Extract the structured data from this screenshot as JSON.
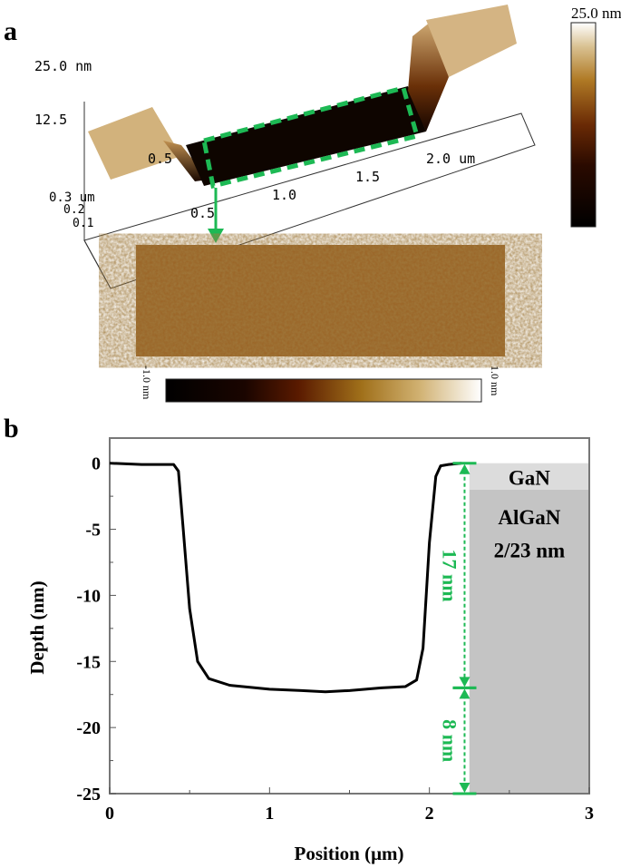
{
  "panel_a": {
    "label": "a",
    "z_axis_labels": [
      "25.0 nm",
      "12.5"
    ],
    "x_axis_labels": [
      "0.5",
      "1.0",
      "1.5",
      "2.0 um"
    ],
    "y_axis_labels": [
      "0.3 um",
      "0.2",
      "0.1"
    ],
    "top_x_label": "0.5",
    "colorbar_3d_max": "25.0 nm",
    "flat_colorbar_min": "-1.0 nm",
    "flat_colorbar_max": "1.0 nm",
    "highlight_color": "#1db954"
  },
  "panel_b": {
    "label": "b"
  },
  "chart_data": {
    "type": "line",
    "xlabel": "Position (μm)",
    "ylabel": "Depth (nm)",
    "xlim": [
      0,
      3
    ],
    "ylim": [
      -25,
      1.9
    ],
    "xticks": [
      "0",
      "1",
      "2",
      "3"
    ],
    "yticks": [
      "0",
      "-5",
      "-10",
      "-15",
      "-20",
      "-25"
    ],
    "grid": false,
    "series": [
      {
        "color": "#000000",
        "x": [
          0,
          0.2,
          0.4,
          0.43,
          0.46,
          0.5,
          0.55,
          0.62,
          0.75,
          1.0,
          1.2,
          1.35,
          1.5,
          1.7,
          1.85,
          1.92,
          1.96,
          2.0,
          2.04,
          2.07,
          2.12,
          2.2
        ],
        "y": [
          0,
          -0.1,
          -0.1,
          -0.6,
          -5,
          -11,
          -15,
          -16.3,
          -16.8,
          -17.1,
          -17.2,
          -17.3,
          -17.2,
          -17.0,
          -16.9,
          -16.4,
          -14,
          -6,
          -1,
          -0.2,
          -0.1,
          0
        ]
      }
    ],
    "regions": [
      {
        "label": "GaN",
        "x": [
          2.25,
          3
        ],
        "y": [
          -2,
          0
        ],
        "color": "#dcdcdc"
      },
      {
        "label": "AlGaN",
        "x": [
          2.25,
          3
        ],
        "y": [
          -25,
          -2
        ],
        "color": "#c4c4c4"
      }
    ],
    "region_annotation": "2/23 nm",
    "annotations": [
      {
        "text": "17 nm",
        "x": 2.22,
        "y_range": [
          -17,
          0
        ],
        "color": "#1db954"
      },
      {
        "text": "8 nm",
        "x": 2.22,
        "y_range": [
          -25,
          -17
        ],
        "color": "#1db954"
      }
    ]
  }
}
